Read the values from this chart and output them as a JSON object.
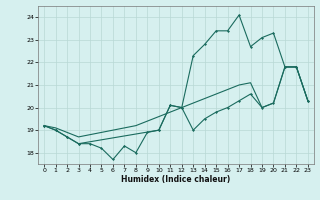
{
  "xlabel": "Humidex (Indice chaleur)",
  "background_color": "#d6f0ef",
  "grid_color": "#b8d8d5",
  "line_color": "#1a6b5e",
  "xlim": [
    -0.5,
    23.5
  ],
  "ylim": [
    17.5,
    24.5
  ],
  "yticks": [
    18,
    19,
    20,
    21,
    22,
    23,
    24
  ],
  "xticks": [
    0,
    1,
    2,
    3,
    4,
    5,
    6,
    7,
    8,
    9,
    10,
    11,
    12,
    13,
    14,
    15,
    16,
    17,
    18,
    19,
    20,
    21,
    22,
    23
  ],
  "line1_x": [
    0,
    1,
    2,
    3,
    4,
    5,
    6,
    7,
    8,
    9,
    10,
    11,
    12,
    13,
    14,
    15,
    16,
    17,
    18,
    19,
    20,
    21,
    22,
    23
  ],
  "line1_y": [
    19.2,
    19.0,
    18.7,
    18.4,
    18.4,
    18.2,
    17.7,
    18.3,
    18.0,
    18.9,
    19.0,
    20.1,
    20.0,
    19.0,
    19.5,
    19.8,
    20.0,
    20.3,
    20.6,
    20.0,
    20.2,
    21.8,
    21.8,
    20.3
  ],
  "line2_x": [
    0,
    1,
    2,
    3,
    10,
    11,
    12,
    13,
    14,
    15,
    16,
    17,
    18,
    19,
    20,
    21,
    22,
    23
  ],
  "line2_y": [
    19.2,
    19.0,
    18.7,
    18.4,
    19.0,
    20.1,
    20.0,
    22.3,
    22.8,
    23.4,
    23.4,
    24.1,
    22.7,
    23.1,
    23.3,
    21.8,
    21.8,
    20.3
  ],
  "line3_x": [
    0,
    1,
    2,
    3,
    4,
    5,
    6,
    7,
    8,
    9,
    10,
    11,
    12,
    13,
    14,
    15,
    16,
    17,
    18,
    19,
    20,
    21,
    22,
    23
  ],
  "line3_y": [
    19.2,
    19.1,
    18.9,
    18.7,
    18.8,
    18.9,
    19.0,
    19.1,
    19.2,
    19.4,
    19.6,
    19.8,
    20.0,
    20.2,
    20.4,
    20.6,
    20.8,
    21.0,
    21.1,
    20.0,
    20.2,
    21.8,
    21.8,
    20.3
  ]
}
